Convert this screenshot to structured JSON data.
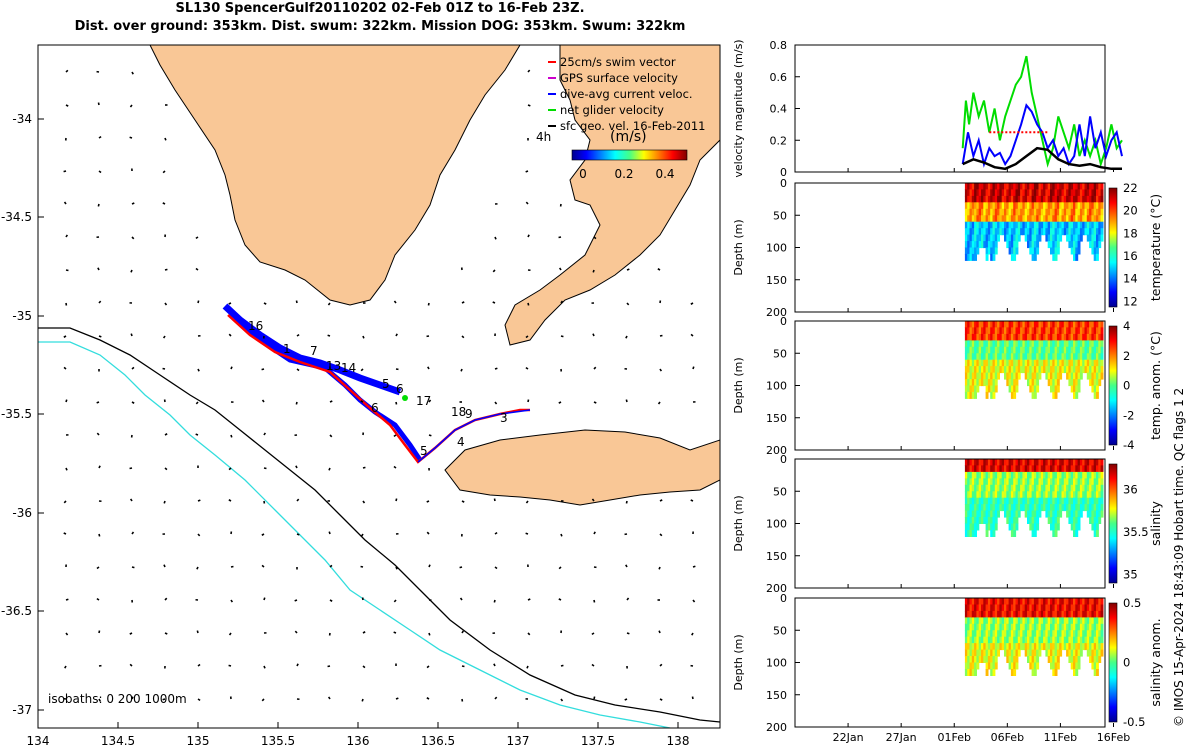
{
  "title": {
    "line1": "SL130 SpencerGulf20110202 02-Feb 01Z to 16-Feb 23Z.",
    "line2": "Dist. over ground: 353km. Dist. swum: 322km. Mission DOG: 353km. Swum: 322km"
  },
  "map": {
    "x_ticks": [
      "134",
      "134.5",
      "135",
      "135.5",
      "136",
      "136.5",
      "137",
      "137.5",
      "138"
    ],
    "y_ticks": [
      "-34",
      "-34.5",
      "-35",
      "-35.5",
      "-36",
      "-36.5",
      "-37"
    ],
    "legend": [
      {
        "label": "25cm/s swim vector",
        "color": "#ff0000"
      },
      {
        "label": "GPS surface velocity",
        "color": "#cc00cc"
      },
      {
        "label": "dive-avg current veloc.",
        "color": "#0000ff"
      },
      {
        "label": "net glider velocity",
        "color": "#00dd00"
      },
      {
        "label": "sfc geo. vel. 16-Feb-2011",
        "color": "#000000"
      }
    ],
    "legend_4h": "4h",
    "speed_colorbar": {
      "label": "(m/s)",
      "ticks": [
        "0",
        "0.2",
        "0.4"
      ]
    },
    "isobaths_text": "isobaths: 0   200  1000m",
    "day_labels": [
      "16",
      "1",
      "7",
      "13",
      "14",
      "5",
      "6",
      "17",
      "6",
      "18",
      "9",
      "3",
      "5",
      "4"
    ]
  },
  "chart_data": [
    {
      "type": "line",
      "title": "",
      "xlabel": "",
      "ylabel": "velocity magnitude (m/s)",
      "ylim": [
        0,
        0.8
      ],
      "yticks": [
        "0",
        "0.2",
        "0.4",
        "0.6",
        "0.8"
      ],
      "series": [
        {
          "name": "net glider velocity",
          "color": "#00dd00",
          "x": [
            0,
            0.3,
            0.6,
            1,
            1.5,
            2,
            2.5,
            3,
            3.5,
            4,
            4.5,
            5,
            5.5,
            6,
            6.5,
            7,
            7.5,
            8,
            8.5,
            9,
            9.5,
            10,
            10.5,
            11,
            11.5,
            12,
            12.5,
            13,
            13.5,
            14,
            14.5,
            15
          ],
          "values": [
            0.15,
            0.45,
            0.3,
            0.5,
            0.35,
            0.45,
            0.25,
            0.4,
            0.2,
            0.35,
            0.45,
            0.55,
            0.6,
            0.73,
            0.5,
            0.35,
            0.2,
            0.05,
            0.15,
            0.35,
            0.25,
            0.15,
            0.3,
            0.1,
            0.2,
            0.1,
            0.2,
            0.05,
            0.15,
            0.3,
            0.15,
            0.2
          ]
        },
        {
          "name": "dive-avg current veloc.",
          "color": "#0000ff",
          "x": [
            0,
            0.5,
            1,
            1.5,
            2,
            2.5,
            3,
            3.5,
            4,
            4.5,
            5,
            5.5,
            6,
            6.5,
            7,
            7.5,
            8,
            8.5,
            9,
            9.5,
            10,
            10.5,
            11,
            11.5,
            12,
            12.5,
            13,
            13.5,
            14,
            14.5,
            15
          ],
          "values": [
            0.05,
            0.25,
            0.1,
            0.2,
            0.05,
            0.15,
            0.1,
            0.12,
            0.05,
            0.1,
            0.2,
            0.3,
            0.42,
            0.38,
            0.3,
            0.25,
            0.15,
            0.2,
            0.1,
            0.15,
            0.05,
            0.1,
            0.3,
            0.1,
            0.35,
            0.15,
            0.25,
            0.1,
            0.2,
            0.25,
            0.1
          ]
        },
        {
          "name": "25cm/s swim vector",
          "color": "#ff0000",
          "x": [
            2.5,
            3,
            3.5,
            4,
            4.5,
            5,
            5.5,
            6,
            6.5,
            7,
            7.5,
            8
          ],
          "values": [
            0.25,
            0.25,
            0.25,
            0.25,
            0.25,
            0.25,
            0.25,
            0.25,
            0.25,
            0.25,
            0.25,
            0.25
          ]
        },
        {
          "name": "sfc geo. vel.",
          "color": "#000000",
          "x": [
            0,
            1,
            2,
            3,
            4,
            5,
            6,
            7,
            8,
            9,
            10,
            11,
            12,
            13,
            14,
            15
          ],
          "values": [
            0.05,
            0.08,
            0.06,
            0.03,
            0.02,
            0.05,
            0.1,
            0.15,
            0.14,
            0.08,
            0.05,
            0.04,
            0.05,
            0.03,
            0.02,
            0.02
          ]
        }
      ]
    },
    {
      "type": "heatmap",
      "ylabel": "Depth (m)",
      "ylim": [
        0,
        200
      ],
      "yticks": [
        "0",
        "50",
        "100",
        "150",
        "200"
      ],
      "colorbar_label": "temperature (°C)",
      "colorbar_ticks": [
        "12",
        "14",
        "16",
        "18",
        "20",
        "22"
      ],
      "clim": [
        11.5,
        22
      ]
    },
    {
      "type": "heatmap",
      "ylabel": "Depth (m)",
      "ylim": [
        0,
        200
      ],
      "yticks": [
        "0",
        "50",
        "100",
        "150",
        "200"
      ],
      "colorbar_label": "temp. anom. (°C)",
      "colorbar_ticks": [
        "-4",
        "-2",
        "0",
        "2",
        "4"
      ],
      "clim": [
        -4,
        4
      ]
    },
    {
      "type": "heatmap",
      "ylabel": "Depth (m)",
      "ylim": [
        0,
        200
      ],
      "yticks": [
        "0",
        "50",
        "100",
        "150",
        "200"
      ],
      "colorbar_label": "salinity",
      "colorbar_ticks": [
        "35",
        "35.5",
        "36"
      ],
      "clim": [
        34.9,
        36.3
      ]
    },
    {
      "type": "heatmap",
      "ylabel": "Depth (m)",
      "ylim": [
        0,
        200
      ],
      "yticks": [
        "0",
        "50",
        "100",
        "150",
        "200"
      ],
      "colorbar_label": "salinity anom.",
      "colorbar_ticks": [
        "-0.5",
        "0",
        "0.5"
      ],
      "clim": [
        -0.5,
        0.5
      ],
      "xticks": [
        "22Jan",
        "27Jan",
        "01Feb",
        "06Feb",
        "11Feb",
        "16Feb"
      ]
    }
  ],
  "footer_text": "© IMOS 15-Apr-2024 18:43:09 Hobart time. QC flags 1  2",
  "colors": {
    "land": "#f9c796",
    "track": "#ff0000",
    "dive": "#0000ff",
    "isobath200": "#000000",
    "isobath1000": "#33dddd"
  }
}
